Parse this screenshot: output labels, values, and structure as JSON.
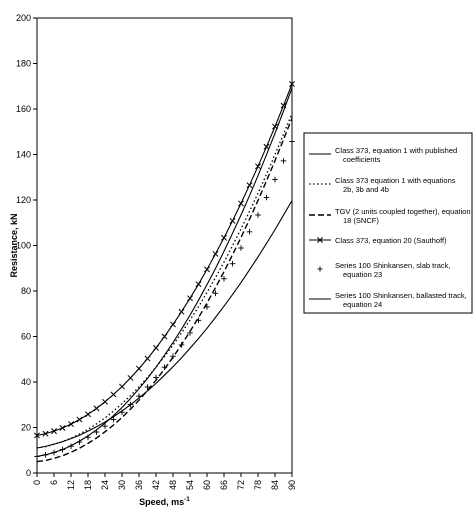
{
  "chart_data": {
    "type": "line",
    "title": "",
    "xlabel": "Speed, ms",
    "xlabel_superscript": "-1",
    "ylabel": "Resistance, kN",
    "xlim": [
      0,
      90
    ],
    "ylim": [
      0,
      200
    ],
    "x_ticks": [
      0,
      6,
      12,
      18,
      24,
      30,
      36,
      42,
      48,
      54,
      60,
      66,
      72,
      78,
      84,
      90
    ],
    "y_ticks": [
      0,
      20,
      40,
      60,
      80,
      100,
      120,
      140,
      160,
      180,
      200
    ],
    "grid": false,
    "legend_position": "right",
    "x": [
      0,
      3,
      6,
      9,
      12,
      15,
      18,
      21,
      24,
      27,
      30,
      33,
      36,
      39,
      42,
      45,
      48,
      51,
      54,
      57,
      60,
      63,
      66,
      69,
      72,
      75,
      78,
      81,
      84,
      87,
      90
    ],
    "series": [
      {
        "name": "Class 373, equation 1 with published coefficients",
        "style": "solid",
        "values": [
          11.0,
          11.7,
          12.7,
          13.8,
          15.1,
          16.6,
          18.4,
          20.3,
          22.4,
          24.7,
          27.3,
          30.0,
          33.0,
          36.1,
          39.4,
          43.0,
          46.7,
          50.6,
          54.8,
          59.1,
          63.6,
          68.4,
          73.3,
          78.4,
          83.7,
          89.3,
          95.0,
          100.9,
          107.0,
          113.3,
          119.8
        ]
      },
      {
        "name": "Class 373 equation 1 with equations 2b, 3b and 4b",
        "style": "dotted",
        "values": [
          11.0,
          11.6,
          12.6,
          13.8,
          15.3,
          17.1,
          19.2,
          21.6,
          24.2,
          27.2,
          30.5,
          34.0,
          37.9,
          42.0,
          46.5,
          51.2,
          56.2,
          61.6,
          67.2,
          73.1,
          79.4,
          85.9,
          92.7,
          99.9,
          107.3,
          115.0,
          123.0,
          131.3,
          140.0,
          148.9,
          158.1
        ]
      },
      {
        "name": "TGV (2 units coupled together), equation 18 (SNCF)",
        "style": "dashed",
        "values": [
          5.0,
          5.5,
          6.4,
          7.6,
          9.1,
          10.9,
          13.0,
          15.4,
          18.1,
          21.1,
          24.4,
          28.1,
          32.0,
          36.3,
          40.8,
          45.7,
          50.9,
          56.4,
          62.2,
          68.3,
          74.7,
          81.5,
          88.5,
          95.9,
          103.5,
          111.5,
          119.8,
          128.4,
          137.3,
          146.5,
          156.0
        ]
      },
      {
        "name": "Class 373, equation 20 (Sauthoff)",
        "style": "solid-x",
        "values": [
          16.5,
          17.3,
          18.4,
          19.8,
          21.5,
          23.5,
          25.8,
          28.4,
          31.3,
          34.5,
          38.0,
          41.8,
          45.9,
          50.3,
          55.0,
          60.0,
          65.3,
          70.9,
          76.8,
          83.0,
          89.5,
          96.3,
          103.4,
          110.8,
          118.5,
          126.5,
          134.8,
          143.4,
          152.3,
          161.5,
          171.0
        ]
      },
      {
        "name": "Series 100 Shinkansen, slab track, equation 23",
        "style": "plus",
        "values": [
          7.3,
          8.0,
          9.0,
          10.3,
          11.8,
          13.6,
          15.7,
          18.0,
          20.6,
          23.5,
          26.7,
          30.1,
          33.8,
          37.8,
          42.0,
          46.5,
          51.3,
          56.3,
          61.6,
          67.1,
          73.0,
          79.0,
          85.4,
          92.0,
          98.9,
          106.0,
          113.4,
          121.1,
          129.0,
          137.2,
          145.7
        ]
      },
      {
        "name": "Series 100 Shinkansen, ballasted track, equation 24",
        "style": "solid",
        "values": [
          7.3,
          8.0,
          9.0,
          10.3,
          12.0,
          14.0,
          16.3,
          19.0,
          21.9,
          25.2,
          28.8,
          32.8,
          37.0,
          41.6,
          46.5,
          51.8,
          57.3,
          63.2,
          69.4,
          75.9,
          82.8,
          89.9,
          97.5,
          105.3,
          113.4,
          121.9,
          130.7,
          139.9,
          149.3,
          159.1,
          169.2
        ]
      }
    ],
    "legend": [
      {
        "lines": [
          "Class 373, equation 1 with published",
          "coefficients"
        ]
      },
      {
        "lines": [
          "Class 373 equation 1 with equations",
          "2b, 3b and 4b"
        ]
      },
      {
        "lines": [
          "TGV (2 units coupled together), equation",
          "18 (SNCF)"
        ]
      },
      {
        "lines": [
          "Class 373, equation 20 (Sauthoff)"
        ]
      },
      {
        "lines": [
          "Series 100 Shinkansen, slab track,",
          "equation 23"
        ]
      },
      {
        "lines": [
          "Series 100 Shinkansen, ballasted track,",
          "equation 24"
        ]
      }
    ]
  }
}
